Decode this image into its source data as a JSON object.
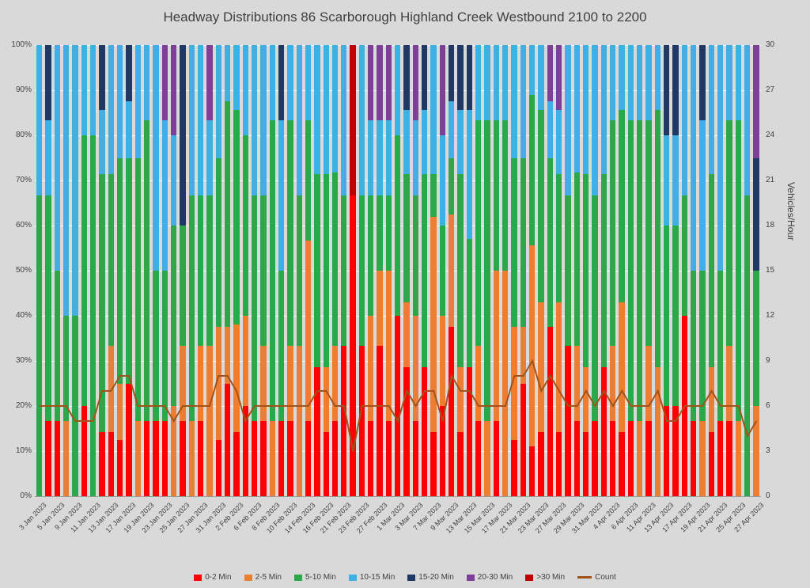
{
  "page": {
    "background": "#d9d9d9",
    "text_color": "#404040"
  },
  "chart_data": {
    "type": "bar",
    "subtype": "stacked-100pct-with-line",
    "title": "Headway Distributions 86 Scarborough  Highland Creek Westbound 2100 to 2200",
    "left_axis": {
      "min": 0,
      "max": 100,
      "ticks": [
        "0%",
        "10%",
        "20%",
        "30%",
        "40%",
        "50%",
        "60%",
        "70%",
        "80%",
        "90%",
        "100%"
      ]
    },
    "right_axis": {
      "label": "Vehicles/Hour",
      "min": 0,
      "max": 30,
      "ticks": [
        "0",
        "3",
        "6",
        "9",
        "12",
        "15",
        "18",
        "21",
        "24",
        "27",
        "30"
      ]
    },
    "label_every": 2,
    "series": [
      {
        "name": "0-2 Min",
        "color": "#ff0000"
      },
      {
        "name": "2-5 Min",
        "color": "#ed7d31"
      },
      {
        "name": "5-10 Min",
        "color": "#2aa84a"
      },
      {
        "name": "10-15 Min",
        "color": "#3fb0e4"
      },
      {
        "name": "15-20 Min",
        "color": "#203864"
      },
      {
        "name": "20-30 Min",
        "color": "#7d3f98"
      },
      {
        "name": ">30 Min",
        "color": "#c00000"
      }
    ],
    "line_series": {
      "name": "Count",
      "color": "#a0541c",
      "axis": "right"
    },
    "segment_order": [
      "0-2 Min",
      "2-5 Min",
      "5-10 Min",
      "10-15 Min",
      "15-20 Min",
      "20-30 Min",
      ">30 Min"
    ],
    "bars": [
      {
        "d": "3 Jan 2023",
        "v": [
          0,
          0,
          66.7,
          33.3,
          0,
          0,
          0
        ],
        "c": 6
      },
      {
        "d": "4 Jan 2023",
        "v": [
          16.7,
          0,
          50.0,
          16.6,
          16.7,
          0,
          0
        ],
        "c": 6
      },
      {
        "d": "5 Jan 2023",
        "v": [
          16.7,
          0,
          33.3,
          50.0,
          0,
          0,
          0
        ],
        "c": 6
      },
      {
        "d": "6 Jan 2023",
        "v": [
          0,
          16.7,
          23.3,
          60.0,
          0,
          0,
          0
        ],
        "c": 6
      },
      {
        "d": "9 Jan 2023",
        "v": [
          0,
          0,
          40.0,
          60.0,
          0,
          0,
          0
        ],
        "c": 5
      },
      {
        "d": "10 Jan 2023",
        "v": [
          20.0,
          0,
          60.0,
          20.0,
          0,
          0,
          0
        ],
        "c": 5
      },
      {
        "d": "11 Jan 2023",
        "v": [
          0,
          0,
          80.0,
          20.0,
          0,
          0,
          0
        ],
        "c": 5
      },
      {
        "d": "12 Jan 2023",
        "v": [
          14.3,
          0,
          57.1,
          14.3,
          14.3,
          0,
          0
        ],
        "c": 7
      },
      {
        "d": "13 Jan 2023",
        "v": [
          14.3,
          19.0,
          38.1,
          28.6,
          0,
          0,
          0
        ],
        "c": 7
      },
      {
        "d": "16 Jan 2023",
        "v": [
          12.5,
          12.5,
          50.0,
          25.0,
          0,
          0,
          0
        ],
        "c": 8
      },
      {
        "d": "17 Jan 2023",
        "v": [
          25.0,
          0,
          50.0,
          12.5,
          12.5,
          0,
          0
        ],
        "c": 8
      },
      {
        "d": "18 Jan 2023",
        "v": [
          0,
          16.7,
          58.3,
          25.0,
          0,
          0,
          0
        ],
        "c": 6
      },
      {
        "d": "19 Jan 2023",
        "v": [
          16.7,
          0,
          66.6,
          16.7,
          0,
          0,
          0
        ],
        "c": 6
      },
      {
        "d": "20 Jan 2023",
        "v": [
          16.7,
          0,
          33.3,
          50.0,
          0,
          0,
          0
        ],
        "c": 6
      },
      {
        "d": "23 Jan 2023",
        "v": [
          16.7,
          0,
          33.3,
          33.3,
          0,
          16.7,
          0
        ],
        "c": 6
      },
      {
        "d": "24 Jan 2023",
        "v": [
          0,
          20.0,
          40.0,
          20.0,
          0,
          20.0,
          0
        ],
        "c": 5
      },
      {
        "d": "25 Jan 2023",
        "v": [
          16.7,
          16.7,
          26.6,
          0,
          40.0,
          0,
          0
        ],
        "c": 6
      },
      {
        "d": "26 Jan 2023",
        "v": [
          0,
          16.7,
          50.0,
          33.3,
          0,
          0,
          0
        ],
        "c": 6
      },
      {
        "d": "27 Jan 2023",
        "v": [
          16.7,
          16.6,
          33.4,
          33.3,
          0,
          0,
          0
        ],
        "c": 6
      },
      {
        "d": "30 Jan 2023",
        "v": [
          0,
          33.3,
          33.3,
          16.7,
          0,
          16.7,
          0
        ],
        "c": 6
      },
      {
        "d": "31 Jan 2023",
        "v": [
          12.5,
          25.0,
          37.5,
          25.0,
          0,
          0,
          0
        ],
        "c": 8
      },
      {
        "d": "1 Feb 2023",
        "v": [
          25.0,
          12.5,
          50.0,
          12.5,
          0,
          0,
          0
        ],
        "c": 8
      },
      {
        "d": "2 Feb 2023",
        "v": [
          14.3,
          23.8,
          47.6,
          14.3,
          0,
          0,
          0
        ],
        "c": 7
      },
      {
        "d": "3 Feb 2023",
        "v": [
          20.0,
          20.0,
          40.0,
          20.0,
          0,
          0,
          0
        ],
        "c": 5
      },
      {
        "d": "6 Feb 2023",
        "v": [
          16.7,
          0,
          50.0,
          33.3,
          0,
          0,
          0
        ],
        "c": 6
      },
      {
        "d": "7 Feb 2023",
        "v": [
          16.7,
          16.6,
          33.4,
          33.3,
          0,
          0,
          0
        ],
        "c": 6
      },
      {
        "d": "8 Feb 2023",
        "v": [
          0,
          16.7,
          66.6,
          16.7,
          0,
          0,
          0
        ],
        "c": 6
      },
      {
        "d": "9 Feb 2023",
        "v": [
          16.7,
          0,
          33.3,
          33.3,
          16.7,
          0,
          0
        ],
        "c": 6
      },
      {
        "d": "10 Feb 2023",
        "v": [
          16.7,
          16.6,
          50.0,
          16.7,
          0,
          0,
          0
        ],
        "c": 6
      },
      {
        "d": "13 Feb 2023",
        "v": [
          0,
          33.3,
          33.4,
          33.3,
          0,
          0,
          0
        ],
        "c": 6
      },
      {
        "d": "14 Feb 2023",
        "v": [
          16.7,
          40.0,
          26.6,
          16.7,
          0,
          0,
          0
        ],
        "c": 6
      },
      {
        "d": "15 Feb 2023",
        "v": [
          28.6,
          0,
          42.8,
          28.6,
          0,
          0,
          0
        ],
        "c": 7
      },
      {
        "d": "16 Feb 2023",
        "v": [
          14.3,
          14.3,
          42.8,
          28.6,
          0,
          0,
          0
        ],
        "c": 7
      },
      {
        "d": "17 Feb 2023",
        "v": [
          16.7,
          16.6,
          38.4,
          28.3,
          0,
          0,
          0
        ],
        "c": 6
      },
      {
        "d": "21 Feb 2023",
        "v": [
          33.3,
          0,
          33.3,
          33.4,
          0,
          0,
          0
        ],
        "c": 6
      },
      {
        "d": "22 Feb 2023",
        "v": [
          66.7,
          0,
          0,
          0,
          0,
          0,
          33.3
        ],
        "c": 3
      },
      {
        "d": "23 Feb 2023",
        "v": [
          33.3,
          0,
          33.3,
          33.4,
          0,
          0,
          0
        ],
        "c": 6
      },
      {
        "d": "24 Feb 2023",
        "v": [
          16.7,
          23.3,
          26.7,
          16.6,
          0,
          16.7,
          0
        ],
        "c": 6
      },
      {
        "d": "27 Feb 2023",
        "v": [
          33.3,
          16.7,
          16.7,
          16.6,
          0,
          16.7,
          0
        ],
        "c": 6
      },
      {
        "d": "28 Feb 2023",
        "v": [
          16.7,
          33.3,
          16.7,
          16.6,
          0,
          16.7,
          0
        ],
        "c": 6
      },
      {
        "d": "1 Mar 2023",
        "v": [
          40.0,
          0,
          40.0,
          20.0,
          0,
          0,
          0
        ],
        "c": 5
      },
      {
        "d": "2 Mar 2023",
        "v": [
          28.6,
          14.3,
          28.5,
          14.3,
          14.3,
          0,
          0
        ],
        "c": 7
      },
      {
        "d": "3 Mar 2023",
        "v": [
          16.7,
          23.3,
          26.7,
          16.6,
          0,
          16.7,
          0
        ],
        "c": 6
      },
      {
        "d": "6 Mar 2023",
        "v": [
          28.6,
          0,
          42.8,
          14.3,
          14.3,
          0,
          0
        ],
        "c": 7
      },
      {
        "d": "7 Mar 2023",
        "v": [
          14.3,
          47.6,
          9.5,
          28.6,
          0,
          0,
          0
        ],
        "c": 7
      },
      {
        "d": "8 Mar 2023",
        "v": [
          20.0,
          20.0,
          20.0,
          20.0,
          0,
          20.0,
          0
        ],
        "c": 5
      },
      {
        "d": "9 Mar 2023",
        "v": [
          37.5,
          25.0,
          12.5,
          12.5,
          12.5,
          0,
          0
        ],
        "c": 8
      },
      {
        "d": "10 Mar 2023",
        "v": [
          14.3,
          14.3,
          42.8,
          14.3,
          14.3,
          0,
          0
        ],
        "c": 7
      },
      {
        "d": "13 Mar 2023",
        "v": [
          28.6,
          0,
          28.5,
          28.6,
          14.3,
          0,
          0
        ],
        "c": 7
      },
      {
        "d": "14 Mar 2023",
        "v": [
          16.7,
          16.6,
          50.0,
          16.7,
          0,
          0,
          0
        ],
        "c": 6
      },
      {
        "d": "15 Mar 2023",
        "v": [
          0,
          16.7,
          66.6,
          16.7,
          0,
          0,
          0
        ],
        "c": 6
      },
      {
        "d": "16 Mar 2023",
        "v": [
          16.7,
          33.3,
          33.3,
          16.7,
          0,
          0,
          0
        ],
        "c": 6
      },
      {
        "d": "17 Mar 2023",
        "v": [
          0,
          50.0,
          33.3,
          16.7,
          0,
          0,
          0
        ],
        "c": 6
      },
      {
        "d": "20 Mar 2023",
        "v": [
          12.5,
          25.0,
          37.5,
          25.0,
          0,
          0,
          0
        ],
        "c": 8
      },
      {
        "d": "21 Mar 2023",
        "v": [
          25.0,
          12.5,
          37.5,
          25.0,
          0,
          0,
          0
        ],
        "c": 8
      },
      {
        "d": "22 Mar 2023",
        "v": [
          11.1,
          44.5,
          33.3,
          11.1,
          0,
          0,
          0
        ],
        "c": 9
      },
      {
        "d": "23 Mar 2023",
        "v": [
          14.3,
          28.6,
          42.8,
          14.3,
          0,
          0,
          0
        ],
        "c": 7
      },
      {
        "d": "24 Mar 2023",
        "v": [
          37.5,
          0,
          37.5,
          12.5,
          0,
          12.5,
          0
        ],
        "c": 8
      },
      {
        "d": "27 Mar 2023",
        "v": [
          14.3,
          28.6,
          28.5,
          14.3,
          0,
          14.3,
          0
        ],
        "c": 7
      },
      {
        "d": "28 Mar 2023",
        "v": [
          33.3,
          0,
          33.3,
          33.4,
          0,
          0,
          0
        ],
        "c": 6
      },
      {
        "d": "29 Mar 2023",
        "v": [
          16.7,
          16.6,
          38.4,
          28.3,
          0,
          0,
          0
        ],
        "c": 6
      },
      {
        "d": "30 Mar 2023",
        "v": [
          14.3,
          14.3,
          42.8,
          28.6,
          0,
          0,
          0
        ],
        "c": 7
      },
      {
        "d": "31 Mar 2023",
        "v": [
          16.7,
          0,
          50.0,
          33.3,
          0,
          0,
          0
        ],
        "c": 6
      },
      {
        "d": "3 Apr 2023",
        "v": [
          28.6,
          0,
          42.8,
          28.6,
          0,
          0,
          0
        ],
        "c": 7
      },
      {
        "d": "4 Apr 2023",
        "v": [
          16.7,
          16.6,
          50.0,
          16.7,
          0,
          0,
          0
        ],
        "c": 6
      },
      {
        "d": "5 Apr 2023",
        "v": [
          14.3,
          28.6,
          42.8,
          14.3,
          0,
          0,
          0
        ],
        "c": 7
      },
      {
        "d": "6 Apr 2023",
        "v": [
          16.7,
          0,
          66.6,
          16.7,
          0,
          0,
          0
        ],
        "c": 6
      },
      {
        "d": "10 Apr 2023",
        "v": [
          0,
          16.7,
          66.6,
          16.7,
          0,
          0,
          0
        ],
        "c": 6
      },
      {
        "d": "11 Apr 2023",
        "v": [
          16.7,
          16.6,
          50.0,
          16.7,
          0,
          0,
          0
        ],
        "c": 6
      },
      {
        "d": "12 Apr 2023",
        "v": [
          0,
          28.6,
          57.1,
          14.3,
          0,
          0,
          0
        ],
        "c": 7
      },
      {
        "d": "13 Apr 2023",
        "v": [
          20.0,
          0,
          40.0,
          20.0,
          20.0,
          0,
          0
        ],
        "c": 5
      },
      {
        "d": "14 Apr 2023",
        "v": [
          20.0,
          0,
          40.0,
          20.0,
          20.0,
          0,
          0
        ],
        "c": 5
      },
      {
        "d": "17 Apr 2023",
        "v": [
          40.0,
          0,
          26.7,
          33.3,
          0,
          0,
          0
        ],
        "c": 6
      },
      {
        "d": "18 Apr 2023",
        "v": [
          16.7,
          0,
          33.3,
          50.0,
          0,
          0,
          0
        ],
        "c": 6
      },
      {
        "d": "19 Apr 2023",
        "v": [
          0,
          16.7,
          33.3,
          33.3,
          16.7,
          0,
          0
        ],
        "c": 6
      },
      {
        "d": "20 Apr 2023",
        "v": [
          14.3,
          14.3,
          42.8,
          28.6,
          0,
          0,
          0
        ],
        "c": 7
      },
      {
        "d": "21 Apr 2023",
        "v": [
          16.7,
          0,
          33.3,
          50.0,
          0,
          0,
          0
        ],
        "c": 6
      },
      {
        "d": "24 Apr 2023",
        "v": [
          16.7,
          16.6,
          50.0,
          16.7,
          0,
          0,
          0
        ],
        "c": 6
      },
      {
        "d": "25 Apr 2023",
        "v": [
          0,
          16.7,
          66.6,
          16.7,
          0,
          0,
          0
        ],
        "c": 6
      },
      {
        "d": "26 Apr 2023",
        "v": [
          0,
          0,
          66.7,
          33.3,
          0,
          0,
          0
        ],
        "c": 4
      },
      {
        "d": "27 Apr 2023",
        "v": [
          0,
          20.0,
          30.0,
          0,
          25.0,
          25.0,
          0
        ],
        "c": 5
      }
    ],
    "legend": [
      {
        "label": "0-2 Min",
        "color": "#ff0000",
        "kind": "box"
      },
      {
        "label": "2-5 Min",
        "color": "#ed7d31",
        "kind": "box"
      },
      {
        "label": "5-10 Min",
        "color": "#2aa84a",
        "kind": "box"
      },
      {
        "label": "10-15 Min",
        "color": "#3fb0e4",
        "kind": "box"
      },
      {
        "label": "15-20 Min",
        "color": "#203864",
        "kind": "box"
      },
      {
        "label": "20-30 Min",
        "color": "#7d3f98",
        "kind": "box"
      },
      {
        "label": ">30 Min",
        "color": "#c00000",
        "kind": "box"
      },
      {
        "label": "Count",
        "color": "#a0541c",
        "kind": "line"
      }
    ]
  }
}
